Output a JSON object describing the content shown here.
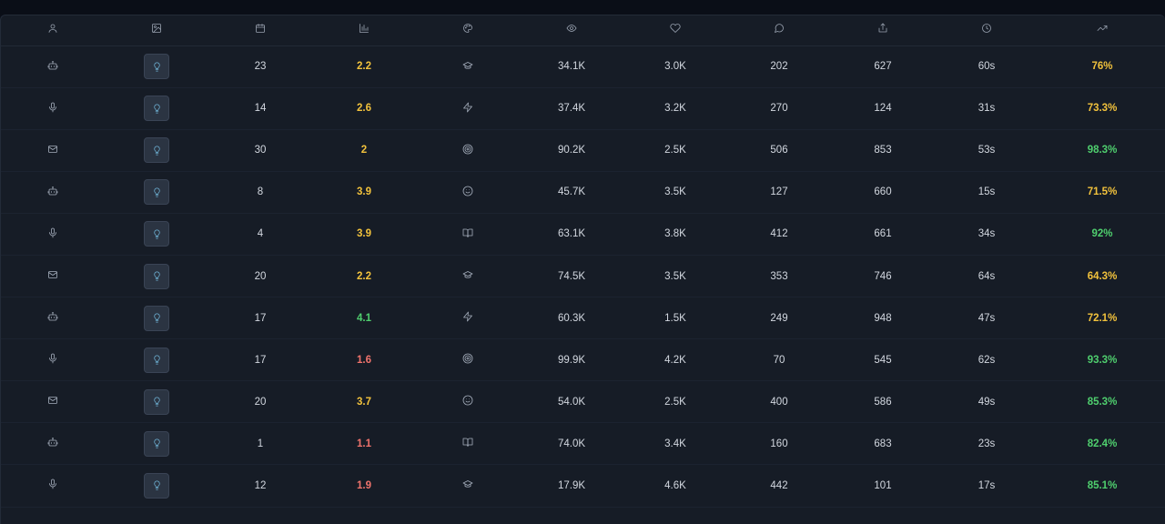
{
  "colors": {
    "yellow": "#f2c23c",
    "green": "#4fcf6e",
    "red": "#f0736c",
    "thumb_icon": "#6fb3d6"
  },
  "columns": [
    {
      "icon": "user-icon"
    },
    {
      "icon": "image-icon"
    },
    {
      "icon": "calendar-icon"
    },
    {
      "icon": "bar-chart-icon"
    },
    {
      "icon": "palette-icon"
    },
    {
      "icon": "eye-icon"
    },
    {
      "icon": "heart-icon"
    },
    {
      "icon": "message-circle-icon"
    },
    {
      "icon": "share-icon"
    },
    {
      "icon": "clock-icon"
    },
    {
      "icon": "trending-up-icon"
    }
  ],
  "rows": [
    {
      "type_icon": "bot-icon",
      "thumb_icon": "lightbulb-icon",
      "days": "23",
      "rating": "2.2",
      "rating_color": "yellow",
      "category_icon": "graduation-cap-icon",
      "views": "34.1K",
      "likes": "3.0K",
      "comments": "202",
      "shares": "627",
      "duration": "60s",
      "rate": "76%",
      "rate_color": "yellow"
    },
    {
      "type_icon": "mic-icon",
      "thumb_icon": "lightbulb-icon",
      "days": "14",
      "rating": "2.6",
      "rating_color": "yellow",
      "category_icon": "zap-icon",
      "views": "37.4K",
      "likes": "3.2K",
      "comments": "270",
      "shares": "124",
      "duration": "31s",
      "rate": "73.3%",
      "rate_color": "yellow"
    },
    {
      "type_icon": "mail-icon",
      "thumb_icon": "lightbulb-icon",
      "days": "30",
      "rating": "2",
      "rating_color": "yellow",
      "category_icon": "target-icon",
      "views": "90.2K",
      "likes": "2.5K",
      "comments": "506",
      "shares": "853",
      "duration": "53s",
      "rate": "98.3%",
      "rate_color": "green"
    },
    {
      "type_icon": "bot-icon",
      "thumb_icon": "lightbulb-icon",
      "days": "8",
      "rating": "3.9",
      "rating_color": "yellow",
      "category_icon": "smile-icon",
      "views": "45.7K",
      "likes": "3.5K",
      "comments": "127",
      "shares": "660",
      "duration": "15s",
      "rate": "71.5%",
      "rate_color": "yellow"
    },
    {
      "type_icon": "mic-icon",
      "thumb_icon": "lightbulb-icon",
      "days": "4",
      "rating": "3.9",
      "rating_color": "yellow",
      "category_icon": "book-open-icon",
      "views": "63.1K",
      "likes": "3.8K",
      "comments": "412",
      "shares": "661",
      "duration": "34s",
      "rate": "92%",
      "rate_color": "green"
    },
    {
      "type_icon": "mail-icon",
      "thumb_icon": "lightbulb-icon",
      "days": "20",
      "rating": "2.2",
      "rating_color": "yellow",
      "category_icon": "graduation-cap-icon",
      "views": "74.5K",
      "likes": "3.5K",
      "comments": "353",
      "shares": "746",
      "duration": "64s",
      "rate": "64.3%",
      "rate_color": "yellow"
    },
    {
      "type_icon": "bot-icon",
      "thumb_icon": "lightbulb-icon",
      "days": "17",
      "rating": "4.1",
      "rating_color": "green",
      "category_icon": "zap-icon",
      "views": "60.3K",
      "likes": "1.5K",
      "comments": "249",
      "shares": "948",
      "duration": "47s",
      "rate": "72.1%",
      "rate_color": "yellow"
    },
    {
      "type_icon": "mic-icon",
      "thumb_icon": "lightbulb-icon",
      "days": "17",
      "rating": "1.6",
      "rating_color": "red",
      "category_icon": "target-icon",
      "views": "99.9K",
      "likes": "4.2K",
      "comments": "70",
      "shares": "545",
      "duration": "62s",
      "rate": "93.3%",
      "rate_color": "green"
    },
    {
      "type_icon": "mail-icon",
      "thumb_icon": "lightbulb-icon",
      "days": "20",
      "rating": "3.7",
      "rating_color": "yellow",
      "category_icon": "smile-icon",
      "views": "54.0K",
      "likes": "2.5K",
      "comments": "400",
      "shares": "586",
      "duration": "49s",
      "rate": "85.3%",
      "rate_color": "green"
    },
    {
      "type_icon": "bot-icon",
      "thumb_icon": "lightbulb-icon",
      "days": "1",
      "rating": "1.1",
      "rating_color": "red",
      "category_icon": "book-open-icon",
      "views": "74.0K",
      "likes": "3.4K",
      "comments": "160",
      "shares": "683",
      "duration": "23s",
      "rate": "82.4%",
      "rate_color": "green"
    },
    {
      "type_icon": "mic-icon",
      "thumb_icon": "lightbulb-icon",
      "days": "12",
      "rating": "1.9",
      "rating_color": "red",
      "category_icon": "graduation-cap-icon",
      "views": "17.9K",
      "likes": "4.6K",
      "comments": "442",
      "shares": "101",
      "duration": "17s",
      "rate": "85.1%",
      "rate_color": "green"
    }
  ]
}
